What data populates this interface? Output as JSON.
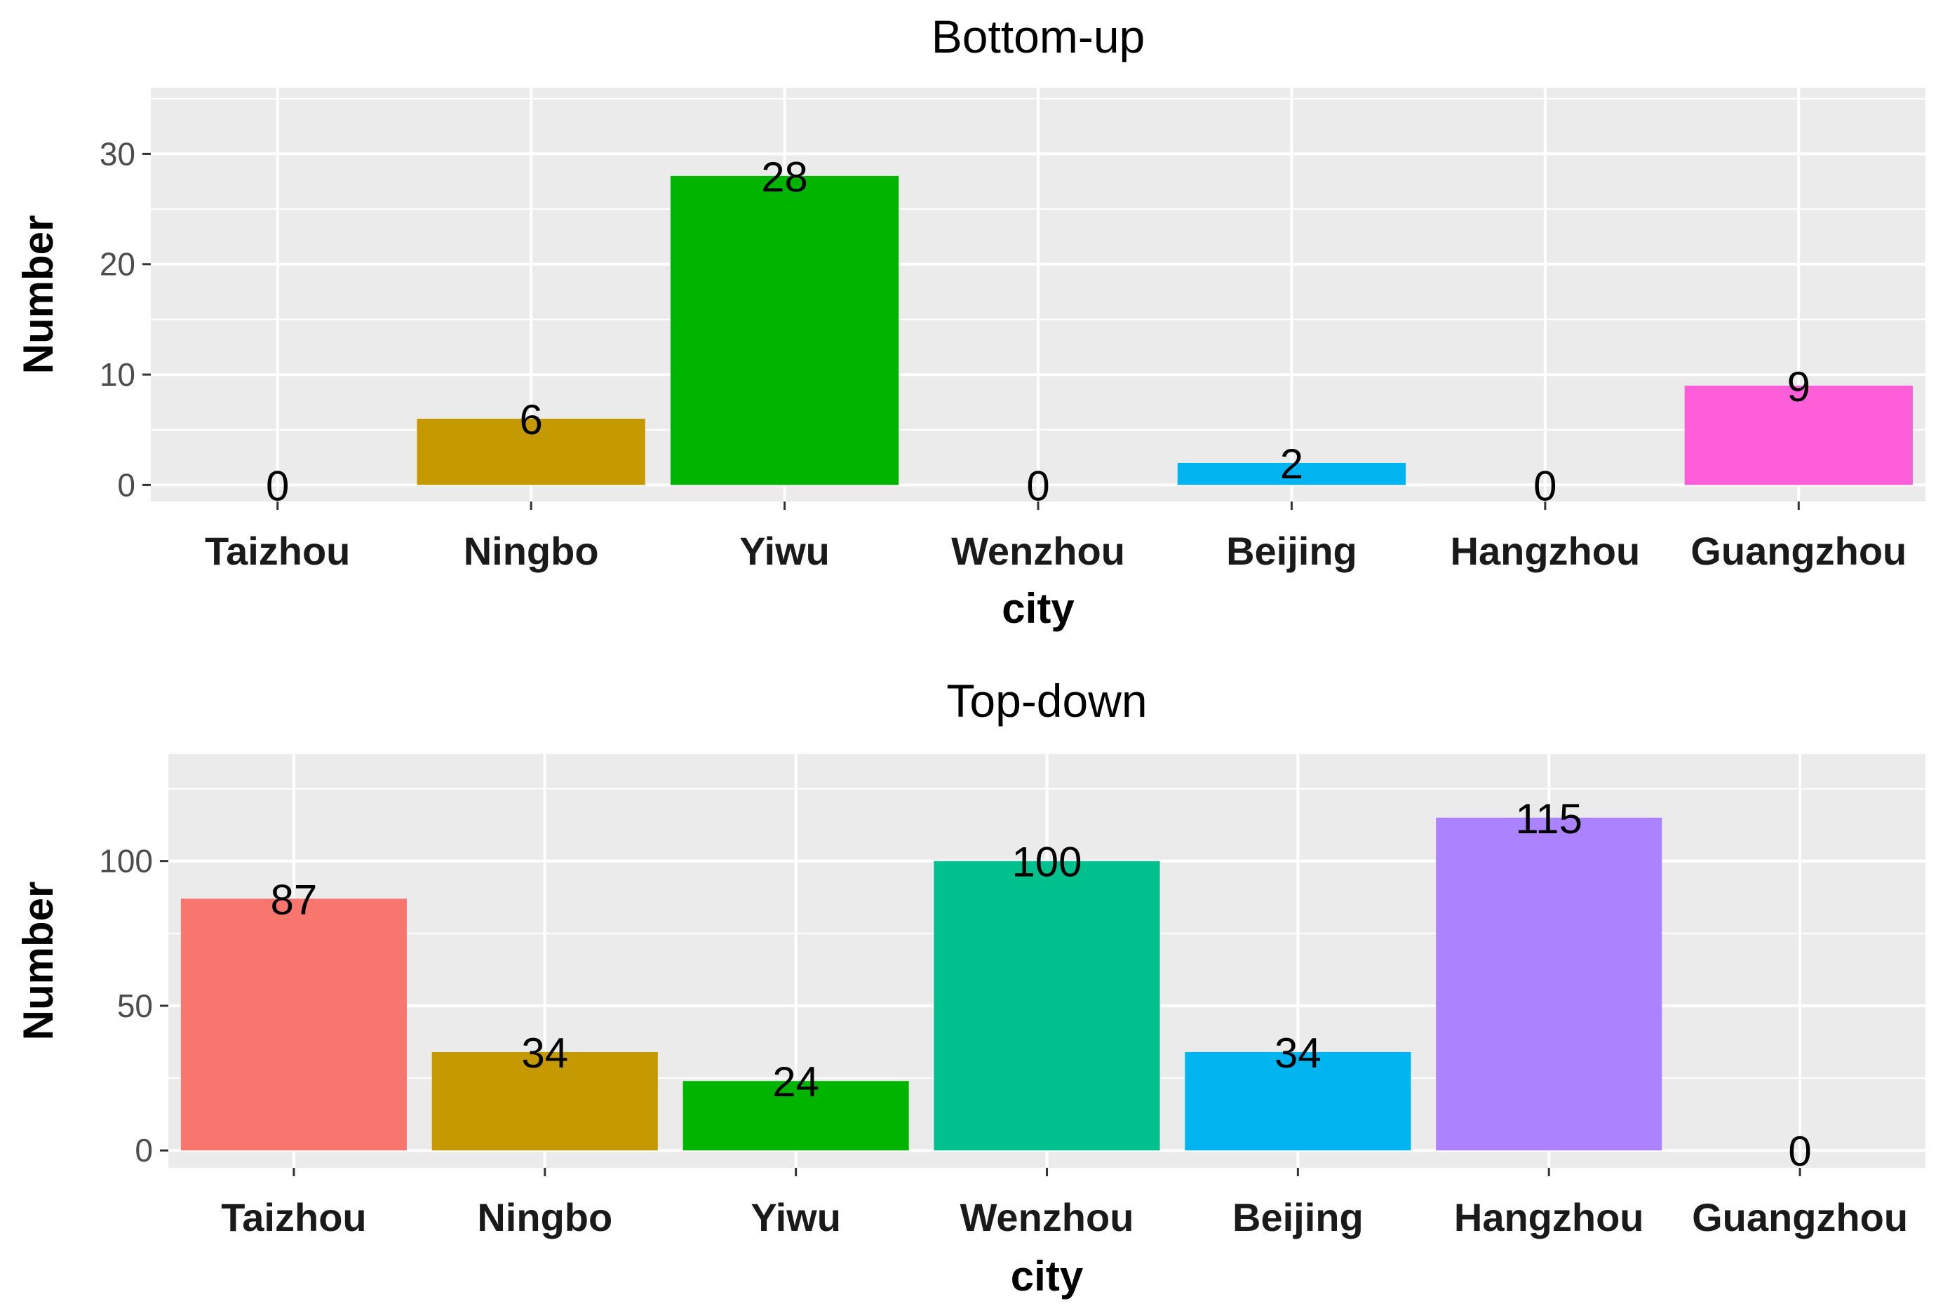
{
  "chart_data": [
    {
      "type": "bar",
      "title": "Bottom-up",
      "xlabel": "city",
      "ylabel": "Number",
      "categories": [
        "Taizhou",
        "Ningbo",
        "Yiwu",
        "Wenzhou",
        "Beijing",
        "Hangzhou",
        "Guangzhou"
      ],
      "values": [
        0,
        6,
        28,
        0,
        2,
        0,
        9
      ],
      "colors": [
        "#F8766D",
        "#C49A00",
        "#00B400",
        "#00C08D",
        "#00B4EF",
        "#AB82FF",
        "#FF5ED9"
      ],
      "ylim": [
        -1.5,
        36
      ],
      "yticks": [
        0,
        10,
        20,
        30
      ],
      "grid": true,
      "legend": "none"
    },
    {
      "type": "bar",
      "title": "Top-down",
      "xlabel": "city",
      "ylabel": "Number",
      "categories": [
        "Taizhou",
        "Ningbo",
        "Yiwu",
        "Wenzhou",
        "Beijing",
        "Hangzhou",
        "Guangzhou"
      ],
      "values": [
        87,
        34,
        24,
        100,
        34,
        115,
        0
      ],
      "colors": [
        "#F8766D",
        "#C49A00",
        "#00B400",
        "#00C08D",
        "#00B4EF",
        "#AB82FF",
        "#FF5ED9"
      ],
      "ylim": [
        -6,
        137
      ],
      "yticks": [
        0,
        50,
        100
      ],
      "grid": true,
      "legend": "none"
    }
  ]
}
